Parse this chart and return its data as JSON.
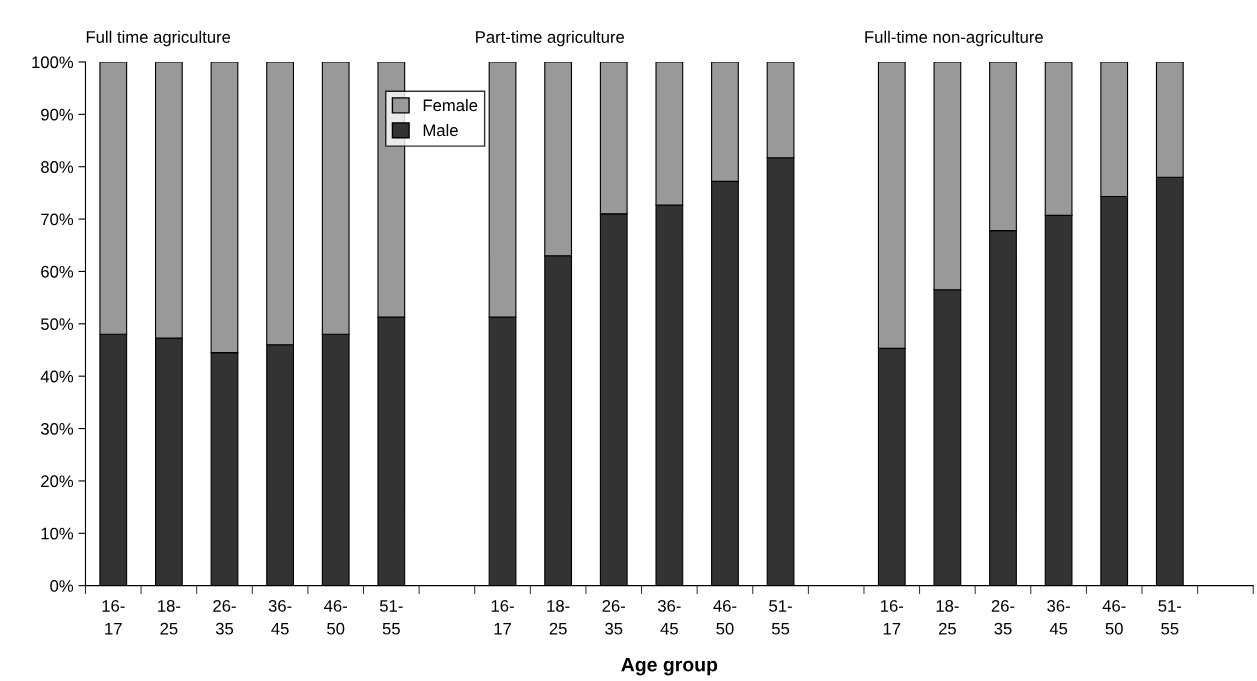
{
  "chart_data": {
    "type": "bar",
    "stacked": true,
    "xlabel": "Age group",
    "categories": [
      "16-\n17",
      "18-\n25",
      "26-\n35",
      "36-\n45",
      "46-\n50",
      "51-\n55",
      null,
      "16-\n17",
      "18-\n25",
      "26-\n35",
      "36-\n45",
      "46-\n50",
      "51-\n55",
      null,
      "16-\n17",
      "18-\n25",
      "26-\n35",
      "36-\n45",
      "46-\n50",
      "51-\n55",
      null
    ],
    "series": [
      {
        "name": "Male",
        "color": "#333333",
        "values": [
          48,
          47.3,
          44.5,
          46,
          48,
          51.3,
          null,
          51.3,
          63,
          71,
          72.7,
          77.2,
          81.7,
          null,
          45.3,
          56.5,
          67.8,
          70.7,
          74.3,
          78,
          null
        ]
      },
      {
        "name": "Female",
        "color": "#999999",
        "values": [
          52,
          52.7,
          55.5,
          54,
          52,
          48.7,
          null,
          48.7,
          37,
          29,
          27.3,
          22.8,
          18.3,
          null,
          54.7,
          43.5,
          32.2,
          29.3,
          25.7,
          22,
          null
        ]
      }
    ],
    "annotations": [
      "Full time agriculture",
      "Part-time agriculture",
      "Full-time non-agriculture"
    ],
    "ylim": [
      0,
      100
    ],
    "yticks": [
      {
        "value": 0,
        "label": "0%"
      },
      {
        "value": 10,
        "label": "10%"
      },
      {
        "value": 20,
        "label": "20%"
      },
      {
        "value": 30,
        "label": "30%"
      },
      {
        "value": 40,
        "label": "40%"
      },
      {
        "value": 50,
        "label": "50%"
      },
      {
        "value": 60,
        "label": "60%"
      },
      {
        "value": 70,
        "label": "70%"
      },
      {
        "value": 80,
        "label": "80%"
      },
      {
        "value": 90,
        "label": "90%"
      },
      {
        "value": 100,
        "label": "100%"
      }
    ],
    "grid": false,
    "legend": "top left"
  }
}
